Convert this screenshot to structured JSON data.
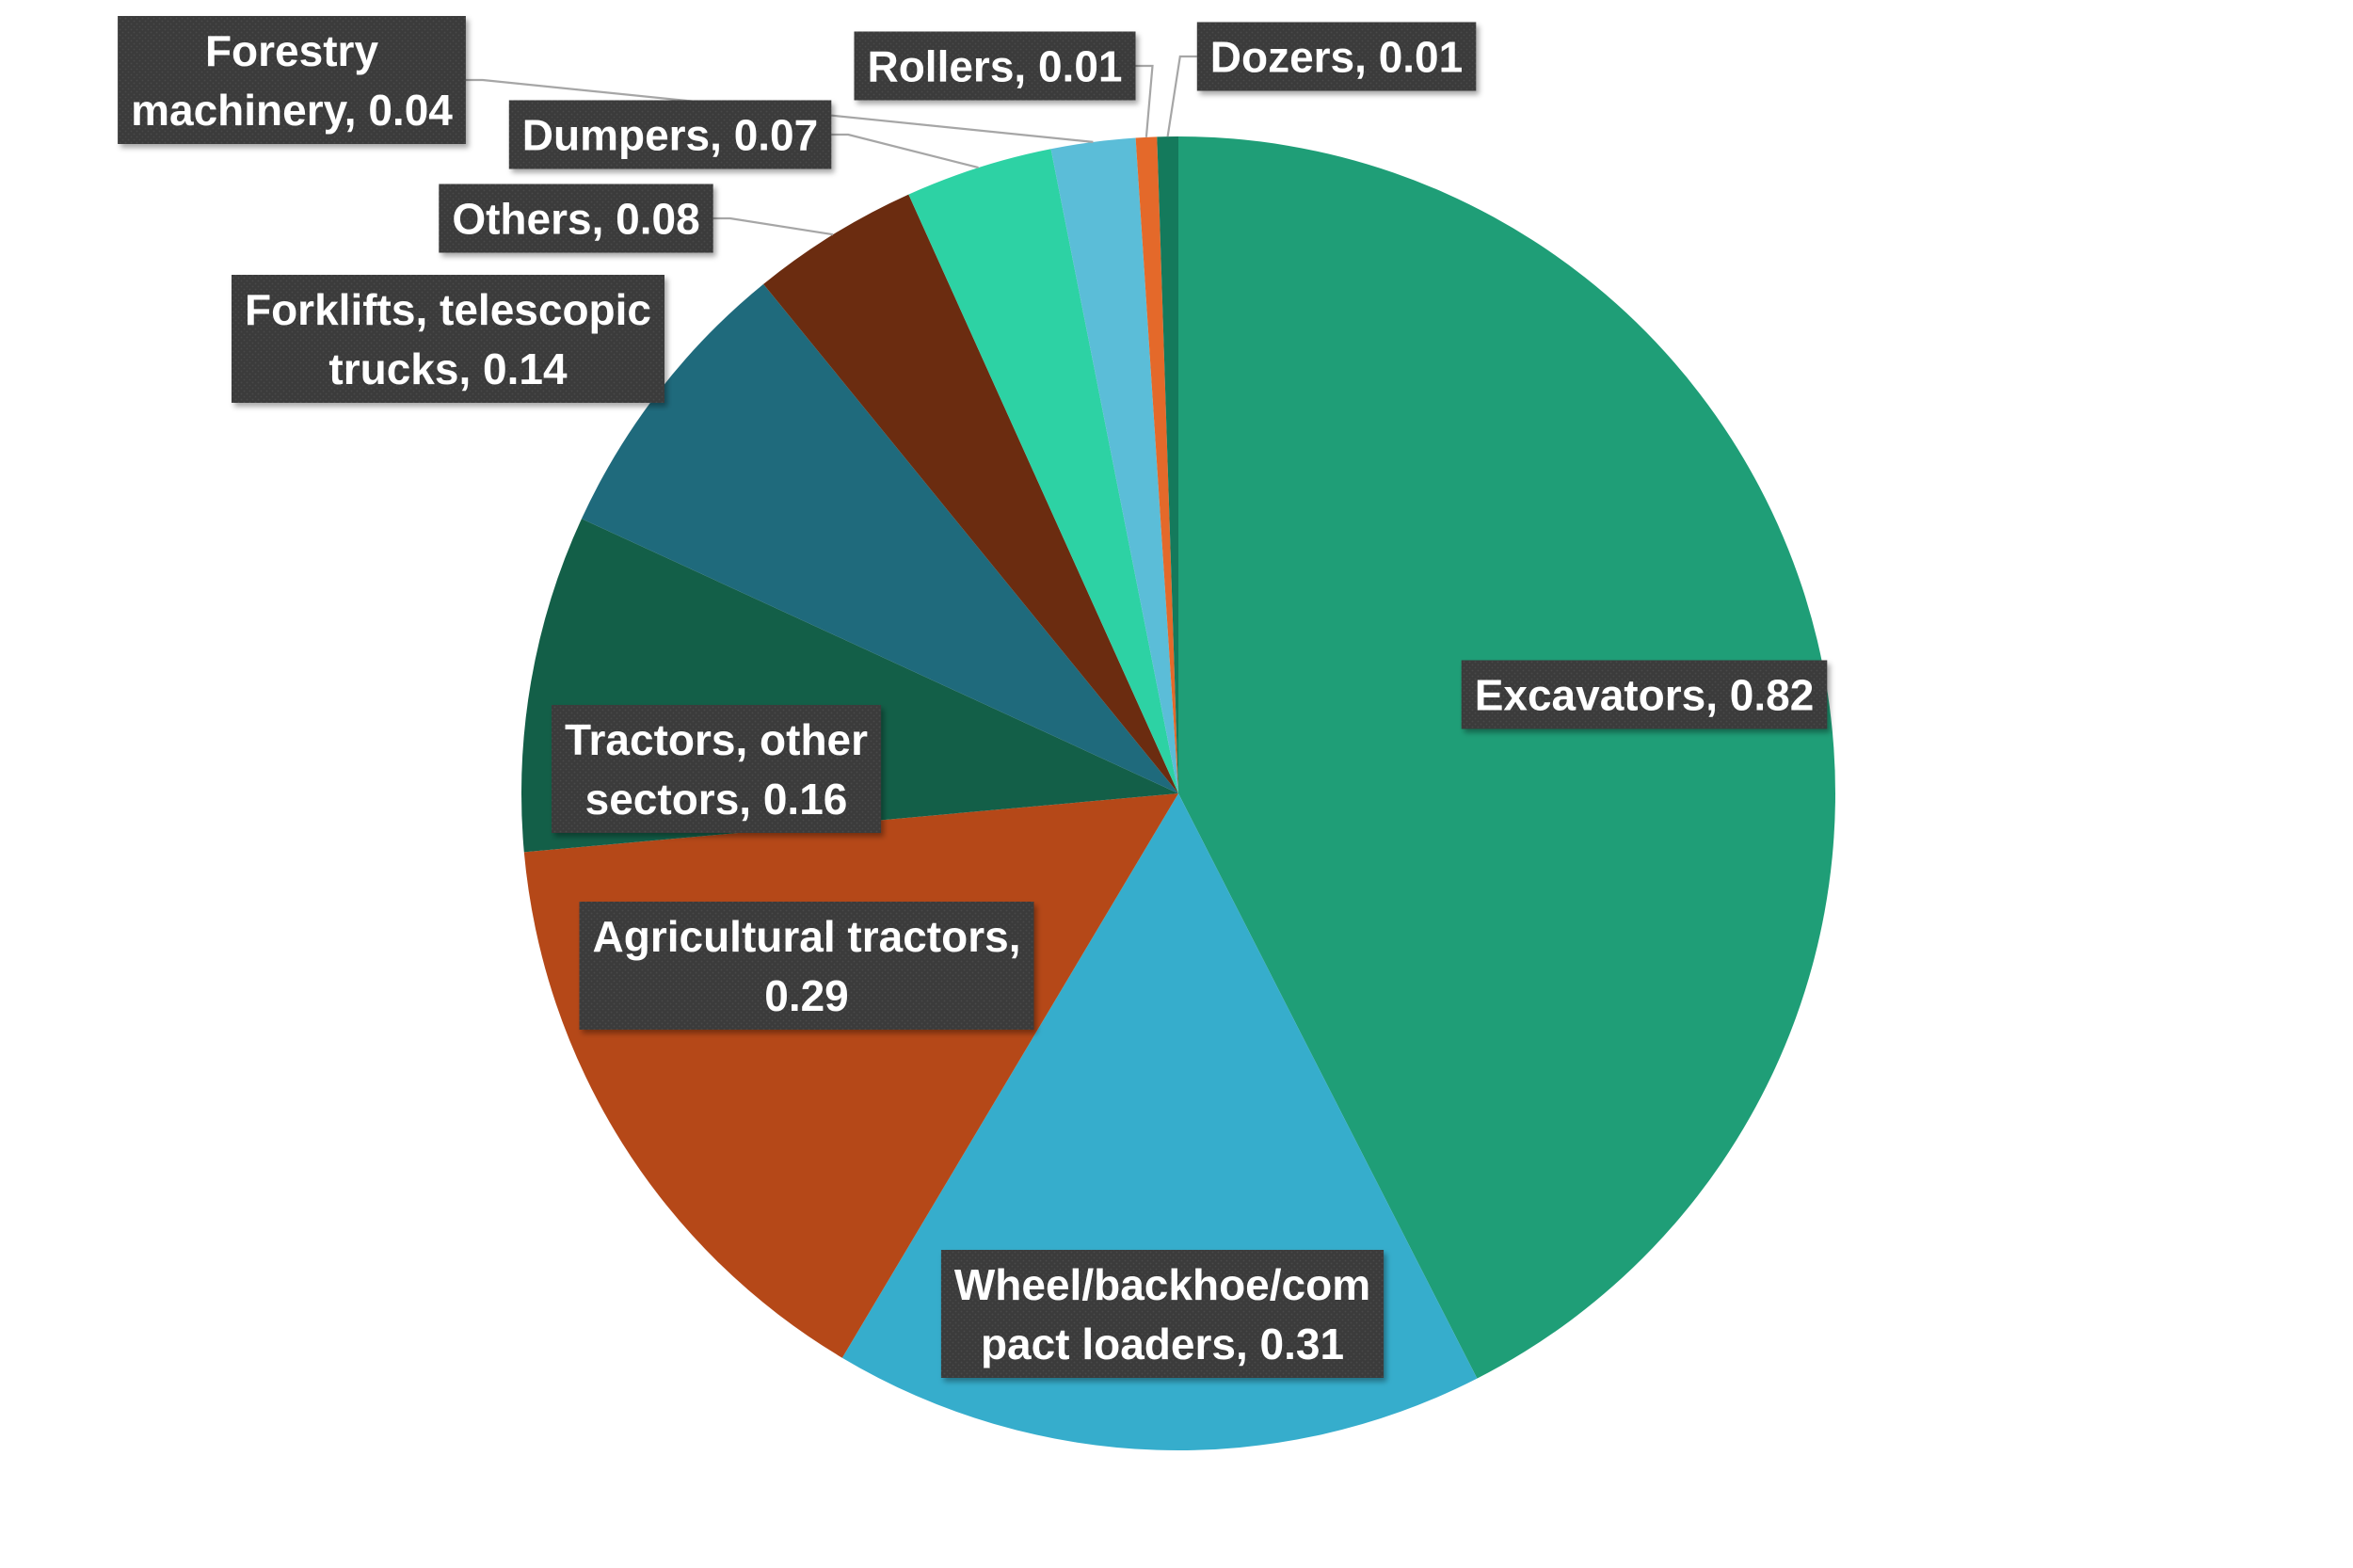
{
  "chart_data": {
    "type": "pie",
    "title": "",
    "start_angle_deg": 0,
    "direction": "clockwise",
    "legend": "none",
    "slices": [
      {
        "category": "Excavators",
        "value": 0.82,
        "color": "#1f9e77",
        "label_lines": [
          "Excavators, 0.82"
        ]
      },
      {
        "category": "Wheel/backhoe/compact loaders",
        "value": 0.31,
        "color": "#36adcc",
        "label_lines": [
          "Wheel/backhoe/com",
          "pact loaders, 0.31"
        ]
      },
      {
        "category": "Agricultural tractors",
        "value": 0.29,
        "color": "#b54818",
        "label_lines": [
          "Agricultural tractors,",
          "0.29"
        ]
      },
      {
        "category": "Tractors, other sectors",
        "value": 0.16,
        "color": "#135f48",
        "label_lines": [
          "Tractors, other",
          "sectors, 0.16"
        ]
      },
      {
        "category": "Forklifts, telescopic trucks",
        "value": 0.14,
        "color": "#1f6a7c",
        "label_lines": [
          "Forklifts, telescopic",
          "trucks, 0.14"
        ]
      },
      {
        "category": "Others",
        "value": 0.08,
        "color": "#6b2c10",
        "label_lines": [
          "Others, 0.08"
        ]
      },
      {
        "category": "Dumpers",
        "value": 0.07,
        "color": "#2dd2a4",
        "label_lines": [
          "Dumpers, 0.07"
        ]
      },
      {
        "category": "Forestry machinery",
        "value": 0.04,
        "color": "#5bbdd8",
        "label_lines": [
          "Forestry",
          "machinery, 0.04"
        ]
      },
      {
        "category": "Rollers",
        "value": 0.01,
        "color": "#e4692a",
        "label_lines": [
          "Rollers, 0.01"
        ]
      },
      {
        "category": "Dozers",
        "value": 0.01,
        "color": "#147a5c",
        "label_lines": [
          "Dozers, 0.01"
        ]
      }
    ]
  }
}
